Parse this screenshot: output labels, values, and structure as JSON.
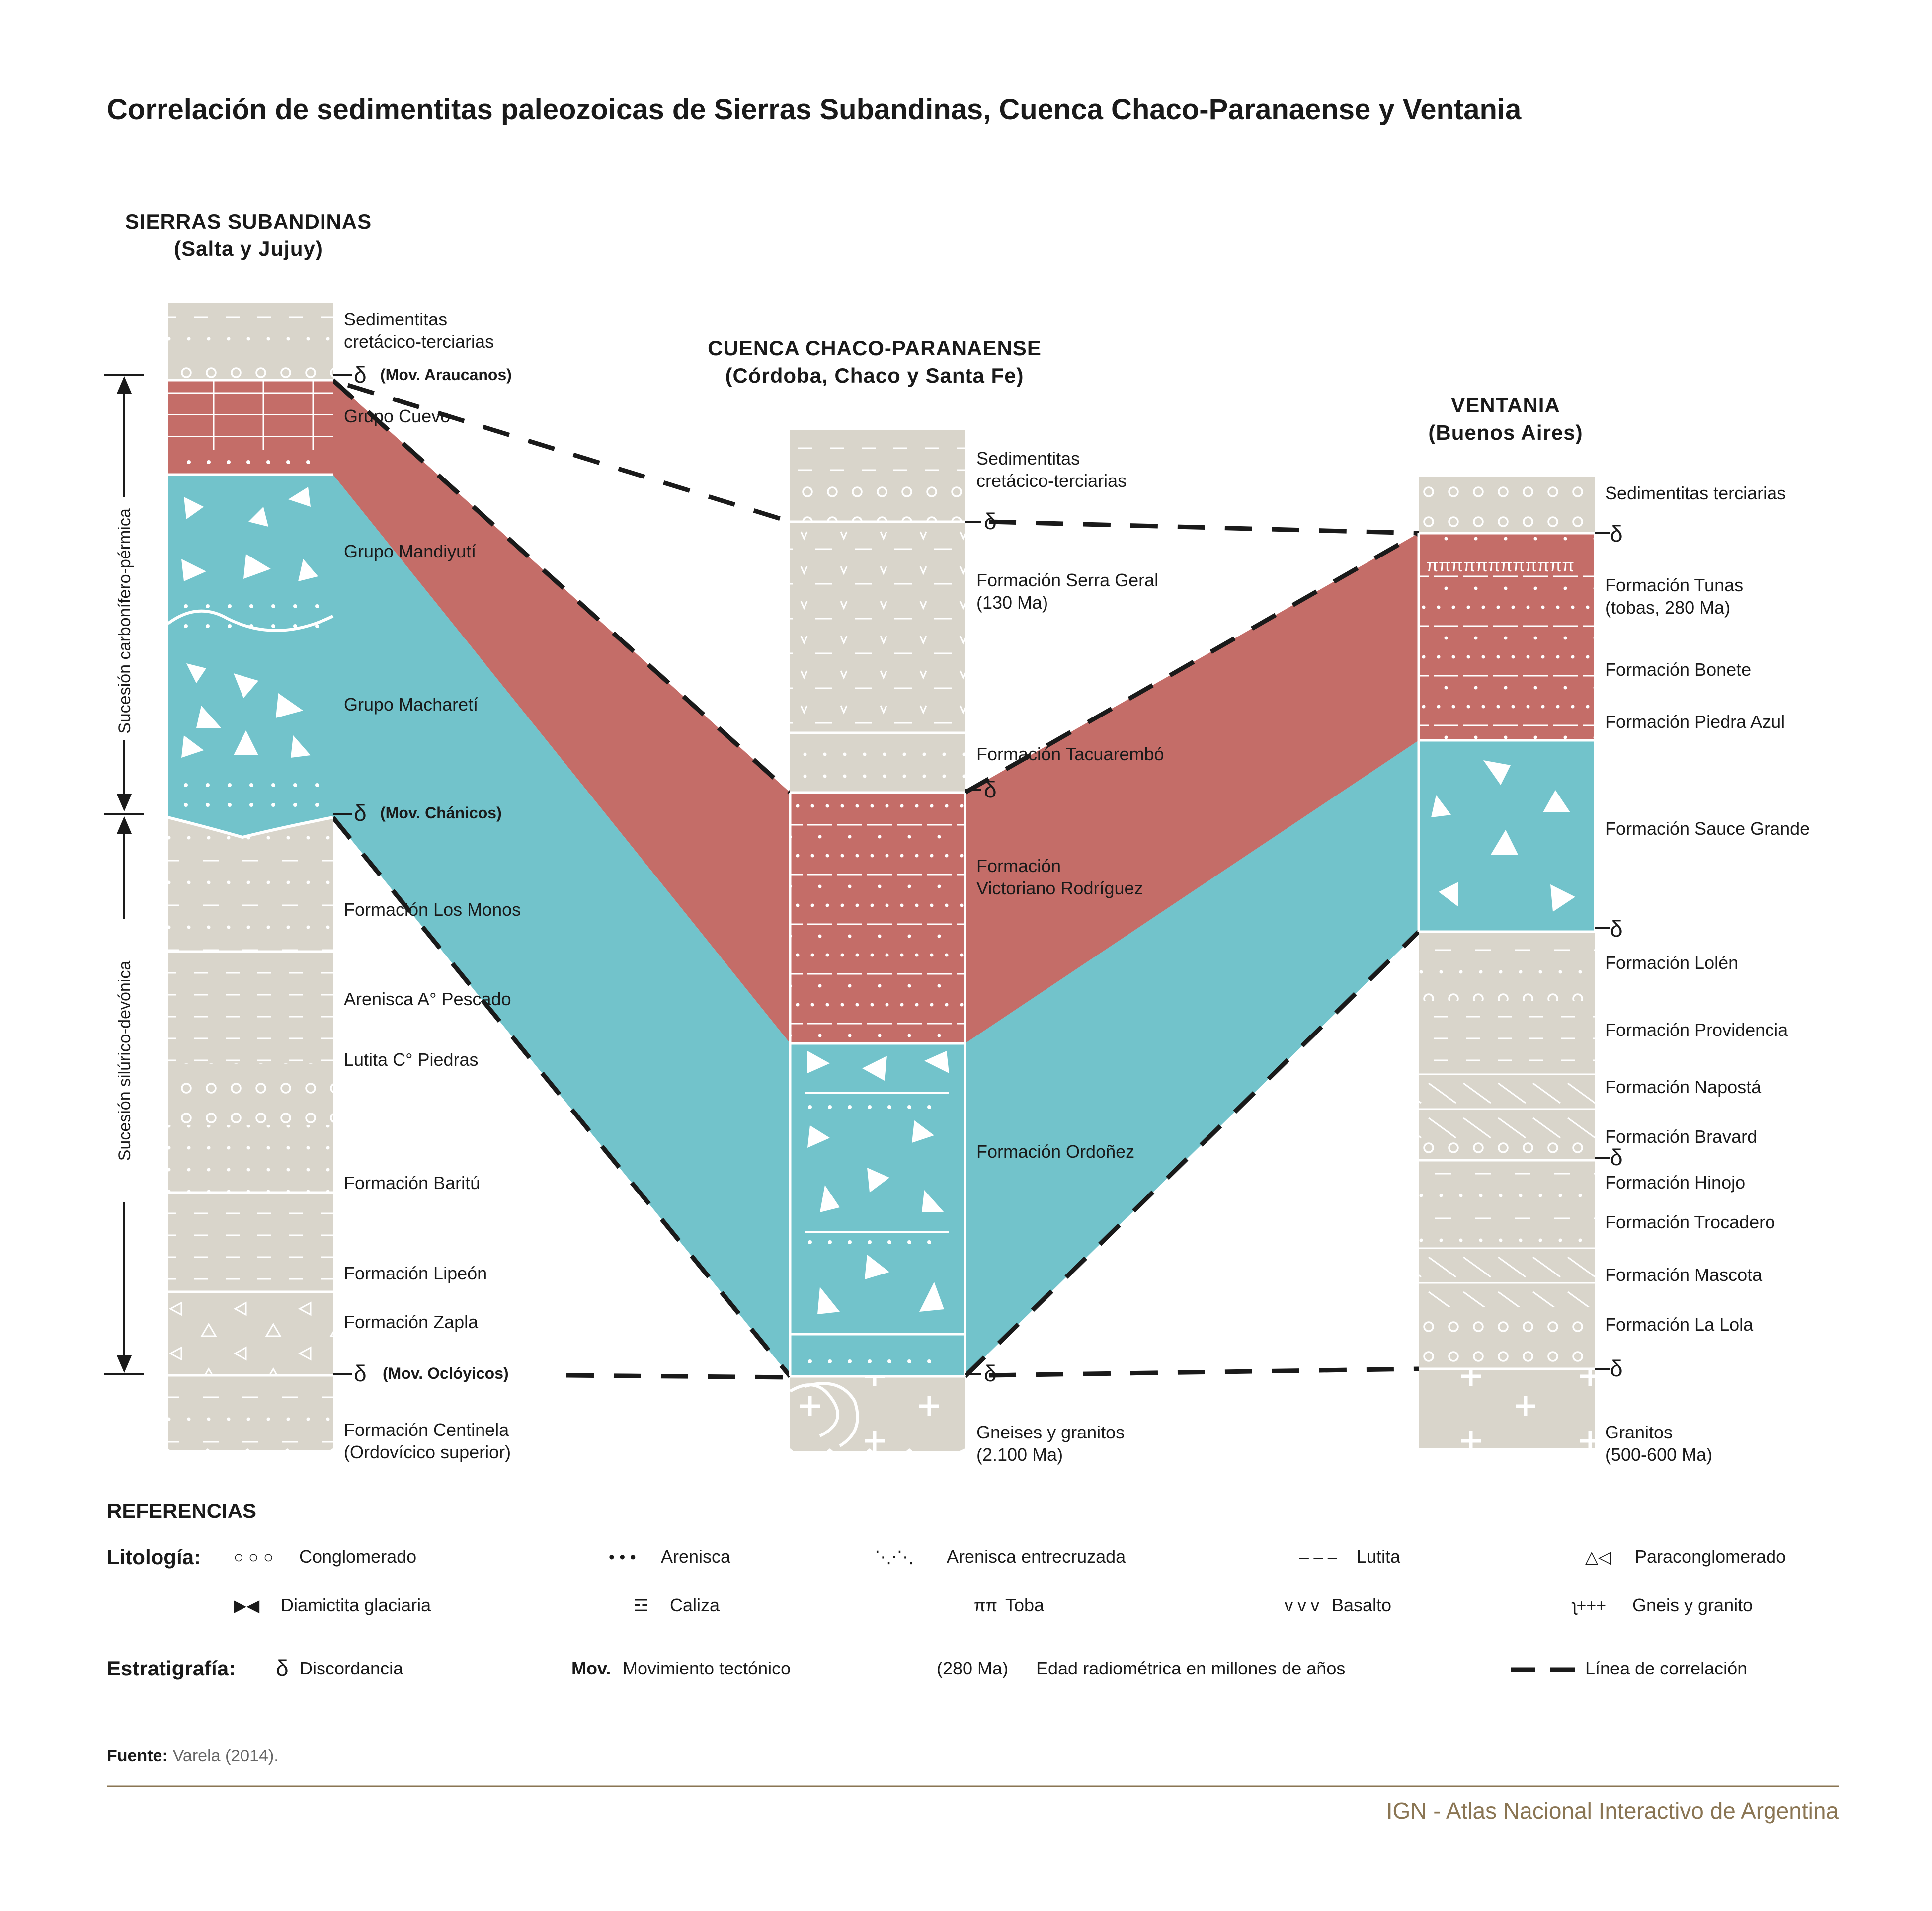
{
  "title": "Correlación de sedimentitas paleozoicas de Sierras Subandinas, Cuenca Chaco-Paranaense y Ventania",
  "colors": {
    "stone": "#d9d5cb",
    "red": "#c46d68",
    "teal": "#72c3cb",
    "ink": "#1a1a1a",
    "footer": "#8a7553"
  },
  "columns": {
    "subandinas": {
      "title": "SIERRAS SUBANDINAS",
      "subtitle": "(Salta y Jujuy)",
      "units": [
        {
          "label1": "Sedimentitas",
          "label2": "cretácico-terciarias"
        },
        {
          "label1": "Grupo Cuevo"
        },
        {
          "label1": "Grupo Mandiyutí"
        },
        {
          "label1": "Grupo Macharetí"
        },
        {
          "label1": "Formación Los Monos"
        },
        {
          "label1": "Arenisca A° Pescado"
        },
        {
          "label1": "Lutita C° Piedras"
        },
        {
          "label1": "Formación Baritú"
        },
        {
          "label1": "Formación Lipeón"
        },
        {
          "label1": "Formación Zapla"
        },
        {
          "label1": "Formación Centinela",
          "label2": "(Ordovícico superior)"
        }
      ],
      "movements": [
        "(Mov. Araucanos)",
        "(Mov. Chánicos)",
        "(Mov. Oclóyicos)"
      ],
      "successions": [
        "Sucesión carbonífero-pérmica",
        "Sucesión silúrico-devónica"
      ]
    },
    "chaco": {
      "title": "CUENCA CHACO-PARANAENSE",
      "subtitle": "(Córdoba, Chaco y Santa Fe)",
      "units": [
        {
          "label1": "Sedimentitas",
          "label2": "cretácico-terciarias"
        },
        {
          "label1": "Formación Serra Geral",
          "label2": "(130 Ma)"
        },
        {
          "label1": "Formación Tacuarembó"
        },
        {
          "label1": "Formación",
          "label2": "Victoriano Rodríguez"
        },
        {
          "label1": "Formación Ordoñez"
        },
        {
          "label1": "Gneises y granitos",
          "label2": "(2.100 Ma)"
        }
      ]
    },
    "ventania": {
      "title": "VENTANIA",
      "subtitle": "(Buenos Aires)",
      "units": [
        {
          "label1": "Sedimentitas terciarias"
        },
        {
          "label1": "Formación Tunas",
          "label2": "(tobas, 280 Ma)"
        },
        {
          "label1": "Formación Bonete"
        },
        {
          "label1": "Formación Piedra Azul"
        },
        {
          "label1": "Formación Sauce Grande"
        },
        {
          "label1": "Formación Lolén"
        },
        {
          "label1": "Formación Providencia"
        },
        {
          "label1": "Formación Napostá"
        },
        {
          "label1": "Formación Bravard"
        },
        {
          "label1": "Formación Hinojo"
        },
        {
          "label1": "Formación Trocadero"
        },
        {
          "label1": "Formación Mascota"
        },
        {
          "label1": "Formación La Lola"
        },
        {
          "label1": "Granitos",
          "label2": "(500-600 Ma)"
        }
      ]
    }
  },
  "delta": "δ",
  "references": {
    "heading": "REFERENCIAS",
    "litologia_label": "Litología:",
    "litologia": [
      {
        "sym": "○ ○ ○",
        "text": "Conglomerado"
      },
      {
        "sym": "• • •",
        "text": "Arenisca"
      },
      {
        "sym": "⋱⋅⋱",
        "text": "Arenisca entrecruzada"
      },
      {
        "sym": "– – –",
        "text": "Lutita"
      },
      {
        "sym": "△◁",
        "text": "Paraconglomerado"
      },
      {
        "sym": "▶◀",
        "text": "Diamictita glaciaria"
      },
      {
        "sym": "☲",
        "text": "Caliza"
      },
      {
        "sym": "ππ",
        "text": "Toba"
      },
      {
        "sym": "v v v",
        "text": "Basalto"
      },
      {
        "sym": "ʅ+++",
        "text": "Gneis y granito"
      }
    ],
    "estratigrafia_label": "Estratigrafía:",
    "estratigrafia": [
      {
        "sym": "δ",
        "text": "Discordancia"
      },
      {
        "sym": "Mov.",
        "text": "Movimiento tectónico"
      },
      {
        "sym": "(280 Ma)",
        "text": "Edad radiométrica en millones de años"
      },
      {
        "sym": "",
        "text": "Línea de correlación"
      }
    ]
  },
  "source": {
    "label": "Fuente:",
    "text": "Varela (2014)."
  },
  "footer": "IGN - Atlas Nacional Interactivo de Argentina"
}
